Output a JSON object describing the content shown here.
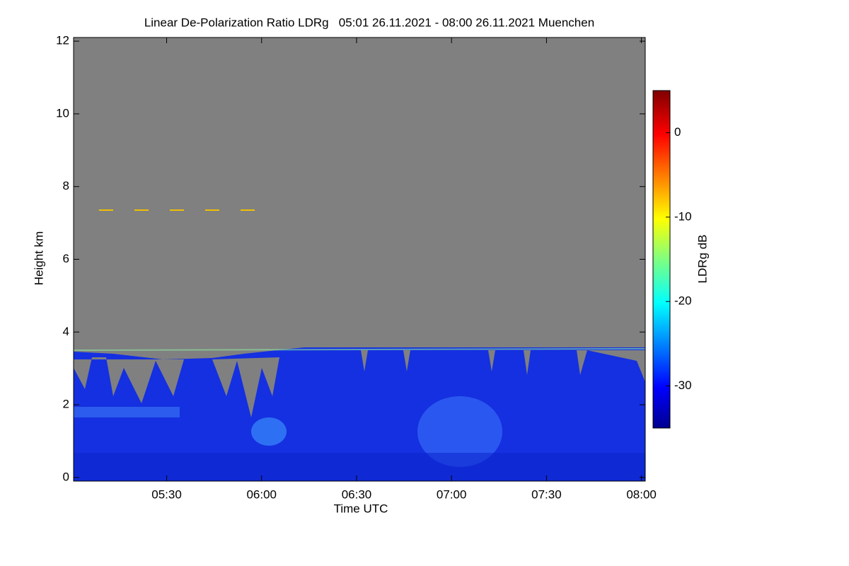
{
  "chart_data": {
    "type": "heatmap",
    "title": "Linear De-Polarization Ratio LDRg   05:01 26.11.2021 - 08:00 26.11.2021 Muenchen",
    "x_label": "Time UTC",
    "y_label": "Height km",
    "colorbar_label": "LDRg dB",
    "xlim": [
      5.01,
      8.02
    ],
    "xticks": [
      {
        "value": 5.5,
        "label": "05:30"
      },
      {
        "value": 6,
        "label": "06:00"
      },
      {
        "value": 6.5,
        "label": "06:30"
      },
      {
        "value": 7,
        "label": "07:00"
      },
      {
        "value": 7.5,
        "label": "07:30"
      },
      {
        "value": 8,
        "label": "08:00"
      }
    ],
    "ylim": [
      -0.1,
      12.1
    ],
    "yticks": [
      0,
      2,
      4,
      6,
      8,
      10,
      12
    ],
    "clim": [
      -35,
      5
    ],
    "cticks": [
      -30,
      -20,
      -10,
      0
    ]
  }
}
